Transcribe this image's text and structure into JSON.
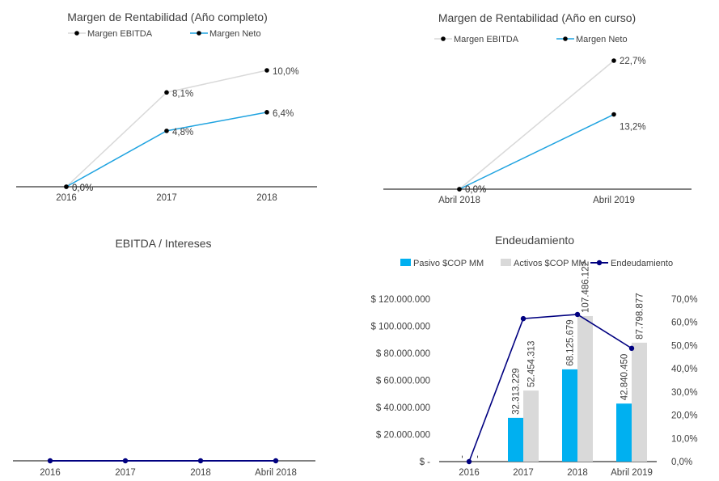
{
  "chart_data": [
    {
      "type": "line",
      "title": "Margen de Rentabilidad (Año completo)",
      "categories": [
        "2016",
        "2017",
        "2018"
      ],
      "series": [
        {
          "name": "Margen EBITDA",
          "values": [
            0.0,
            8.1,
            10.0
          ],
          "labels": [
            "0,0%",
            "8,1%",
            "10,0%"
          ],
          "color": "#d9d9d9"
        },
        {
          "name": "Margen Neto",
          "values": [
            0.0,
            4.8,
            6.4
          ],
          "labels": [
            "0,0%",
            "4,8%",
            "6,4%"
          ],
          "color": "#1fa3e0"
        }
      ]
    },
    {
      "type": "line",
      "title": "Margen de Rentabilidad (Año en curso)",
      "categories": [
        "Abril 2018",
        "Abril 2019"
      ],
      "series": [
        {
          "name": "Margen EBITDA",
          "values": [
            0.0,
            22.7
          ],
          "labels": [
            "0,0%",
            "22,7%"
          ],
          "color": "#d9d9d9"
        },
        {
          "name": "Margen Neto",
          "values": [
            0.0,
            13.2
          ],
          "labels": [
            "0,0%",
            "13,2%"
          ],
          "color": "#1fa3e0"
        }
      ]
    },
    {
      "type": "line",
      "title": "EBITDA / Intereses",
      "categories": [
        "2016",
        "2017",
        "2018",
        "Abril 2018"
      ],
      "series": [
        {
          "values": [
            0,
            0,
            0,
            0
          ],
          "color": "#000080"
        }
      ]
    },
    {
      "type": "bar",
      "title": "Endeudamiento",
      "categories": [
        "2016",
        "2017",
        "2018",
        "Abril 2019"
      ],
      "series": [
        {
          "name": "Pasivo $COP MM",
          "values": [
            0,
            32313229,
            68125679,
            42840450
          ],
          "labels": [
            "",
            "32.313.229",
            "68.125.679",
            "42.840.450"
          ],
          "color": "#00b0f0"
        },
        {
          "name": "Activos $COP MM",
          "values": [
            0,
            52454313,
            107486122,
            87798877
          ],
          "labels": [
            "",
            "52.454.313",
            "107.486.122",
            "87.798.877"
          ],
          "color": "#d9d9d9"
        },
        {
          "name": "Endeudamiento",
          "type": "line",
          "axis": "right",
          "values": [
            0.0,
            61.6,
            63.4,
            48.8
          ],
          "color": "#000080"
        }
      ],
      "y_left": {
        "ylim": [
          0,
          120000000
        ],
        "ticks": [
          "$ -",
          "$ 20.000.000",
          "$ 40.000.000",
          "$ 60.000.000",
          "$ 80.000.000",
          "$ 100.000.000",
          "$ 120.000.000"
        ]
      },
      "y_right": {
        "ylim": [
          0,
          70
        ],
        "ticks": [
          "0,0%",
          "10,0%",
          "20,0%",
          "30,0%",
          "40,0%",
          "50,0%",
          "60,0%",
          "70,0%"
        ]
      },
      "legend": "top"
    }
  ]
}
